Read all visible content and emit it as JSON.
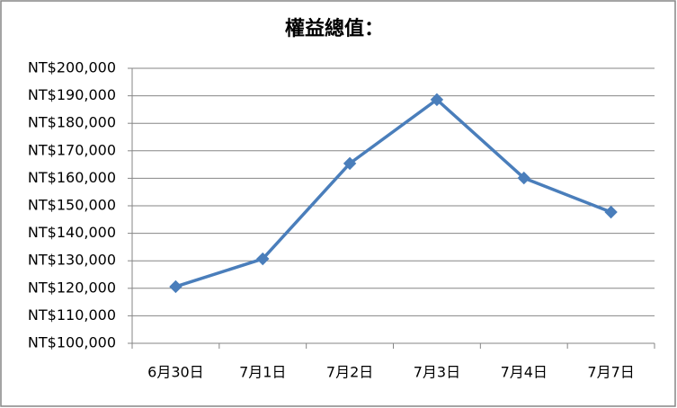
{
  "chart_data": {
    "type": "line",
    "title": "權益總值：",
    "categories": [
      "6月30日",
      "7月1日",
      "7月2日",
      "7月3日",
      "7月4日",
      "7月7日"
    ],
    "series": [
      {
        "color": "#4a7ebb",
        "values": [
          120600,
          130700,
          165400,
          188600,
          160100,
          147700
        ]
      }
    ],
    "ylim": [
      100000,
      200000
    ],
    "yticks": [
      {
        "value": 100000,
        "label": "NT$100,000"
      },
      {
        "value": 110000,
        "label": "NT$110,000"
      },
      {
        "value": 120000,
        "label": "NT$120,000"
      },
      {
        "value": 130000,
        "label": "NT$130,000"
      },
      {
        "value": 140000,
        "label": "NT$140,000"
      },
      {
        "value": 150000,
        "label": "NT$150,000"
      },
      {
        "value": 160000,
        "label": "NT$160,000"
      },
      {
        "value": 170000,
        "label": "NT$170,000"
      },
      {
        "value": 180000,
        "label": "NT$180,000"
      },
      {
        "value": 190000,
        "label": "NT$190,000"
      },
      {
        "value": 200000,
        "label": "NT$200,000"
      }
    ],
    "grid": true,
    "marker": "diamond"
  }
}
